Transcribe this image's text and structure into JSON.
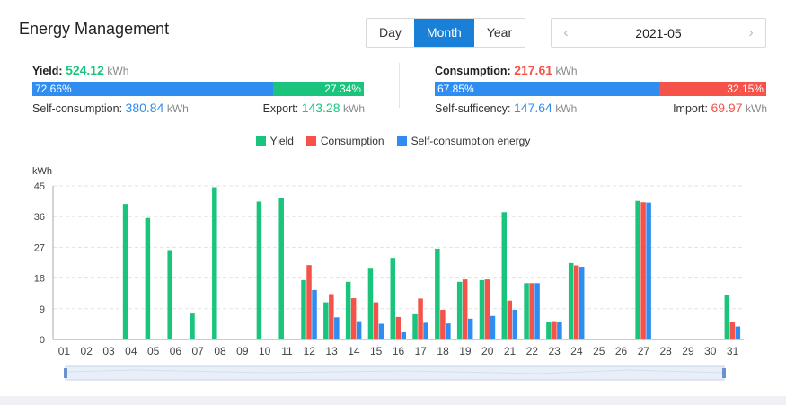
{
  "header": {
    "title": "Energy Management"
  },
  "period_tabs": [
    {
      "label": "Day",
      "active": false
    },
    {
      "label": "Month",
      "active": true
    },
    {
      "label": "Year",
      "active": false
    }
  ],
  "date_picker": {
    "value": "2021-05",
    "prev_icon": "chevron-left-icon",
    "next_icon": "chevron-right-icon"
  },
  "yield": {
    "label": "Yield:",
    "value": "524.12",
    "unit": "kWh",
    "self_pct": "72.66%",
    "export_pct": "27.34%",
    "self_fraction": 0.7266,
    "self_label": "Self-consumption:",
    "self_value": "380.84",
    "self_unit": "kWh",
    "export_label": "Export:",
    "export_value": "143.28",
    "export_unit": "kWh"
  },
  "consumption": {
    "label": "Consumption:",
    "value": "217.61",
    "unit": "kWh",
    "self_pct": "67.85%",
    "import_pct": "32.15%",
    "self_fraction": 0.6785,
    "self_label": "Self-sufficency:",
    "self_value": "147.64",
    "self_unit": "kWh",
    "import_label": "Import:",
    "import_value": "69.97",
    "import_unit": "kWh"
  },
  "colors": {
    "yield": "#1bc47d",
    "consumption": "#f5534a",
    "self": "#2f8cf0",
    "bar_blue": "#2f8cf0",
    "bar_green": "#1bc47d",
    "bar_red": "#f5534a",
    "yield_value": "#1bc47d",
    "consumption_value": "#f5534a",
    "self_value": "#2f8cf0"
  },
  "chart_data": {
    "type": "bar",
    "ylabel": "kWh",
    "ylim": [
      0,
      45
    ],
    "yticks": [
      0,
      9,
      18,
      27,
      36,
      45
    ],
    "legend": [
      "Yield",
      "Consumption",
      "Self-consumption energy"
    ],
    "legend_placement": "top-center",
    "grid": true,
    "categories": [
      "01",
      "02",
      "03",
      "04",
      "05",
      "06",
      "07",
      "08",
      "09",
      "10",
      "11",
      "12",
      "13",
      "14",
      "15",
      "16",
      "17",
      "18",
      "19",
      "20",
      "21",
      "22",
      "23",
      "24",
      "25",
      "26",
      "27",
      "28",
      "29",
      "30",
      "31"
    ],
    "series": [
      {
        "name": "Yield",
        "values": [
          0,
          0,
          0,
          39.7,
          35.6,
          26.2,
          7.6,
          44.6,
          0,
          40.4,
          41.4,
          17.4,
          10.9,
          16.9,
          21.0,
          23.9,
          7.4,
          26.6,
          16.9,
          17.4,
          37.3,
          16.5,
          5.0,
          22.4,
          0,
          0,
          40.6,
          0,
          0,
          0,
          13.0
        ]
      },
      {
        "name": "Consumption",
        "values": [
          0,
          0,
          0,
          0,
          0,
          0,
          0,
          0,
          0,
          0,
          0,
          21.8,
          13.3,
          12.1,
          10.9,
          6.6,
          12.0,
          8.7,
          17.6,
          17.6,
          11.4,
          16.5,
          5.1,
          21.7,
          0.2,
          0,
          40.2,
          0,
          0,
          0,
          5.0
        ]
      },
      {
        "name": "Self-consumption energy",
        "values": [
          0,
          0,
          0,
          0,
          0,
          0,
          0,
          0,
          0,
          0,
          0,
          14.5,
          6.5,
          5.1,
          4.6,
          2.1,
          4.9,
          4.7,
          6.1,
          6.9,
          8.7,
          16.5,
          5.0,
          21.3,
          0,
          0,
          40.1,
          0,
          0,
          0,
          3.8
        ]
      }
    ]
  }
}
